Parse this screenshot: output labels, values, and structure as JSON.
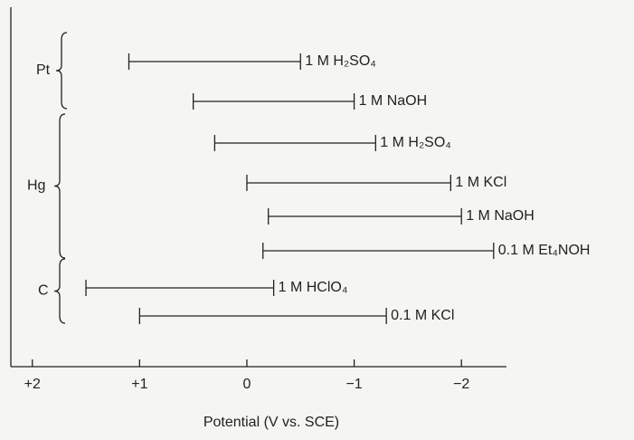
{
  "chart_data": {
    "type": "range",
    "x_label": "Potential (V vs. SCE)",
    "xlim": [
      2.2,
      -3.6
    ],
    "xticks": [
      {
        "value": 2,
        "label": "+2"
      },
      {
        "value": 1,
        "label": "+1"
      },
      0,
      {
        "value": -1,
        "label": "−1"
      },
      {
        "value": -2,
        "label": "−2"
      }
    ],
    "groups": [
      {
        "label": "Pt",
        "bars": [
          {
            "label": "1 M H₂SO₄",
            "start": 1.1,
            "end": -0.5
          },
          {
            "label": "1 M NaOH",
            "start": 0.5,
            "end": -1.0
          }
        ]
      },
      {
        "label": "Hg",
        "bars": [
          {
            "label": "1 M H₂SO₄",
            "start": 0.3,
            "end": -1.2
          },
          {
            "label": "1 M KCl",
            "start": 0,
            "end": -1.9
          },
          {
            "label": "1 M NaOH",
            "start": -0.2,
            "end": -2.0
          },
          {
            "label": "0.1 M Et₄NOH",
            "start": -0.15,
            "end": -2.3
          }
        ]
      },
      {
        "label": "C",
        "bars": [
          {
            "label": "1 M HClO₄",
            "start": 1.5,
            "end": -0.25
          },
          {
            "label": "0.1 M KCl",
            "start": 1.0,
            "end": -1.3
          }
        ]
      }
    ]
  }
}
